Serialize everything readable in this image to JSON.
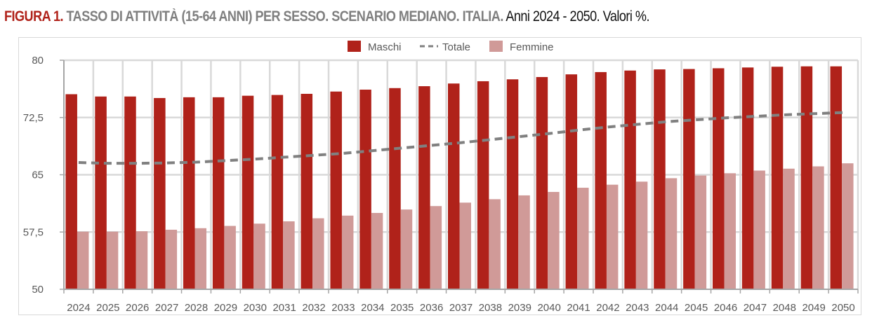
{
  "title": {
    "figure": "FIGURA 1.",
    "main": " TASSO DI ATTIVITÀ (15-64 ANNI) PER SESSO. SCENARIO MEDIANO. ITALIA.",
    "sub": " Anni 2024 - 2050. Valori %."
  },
  "colors": {
    "maschi": "#B0221A",
    "femmine": "#D09A98",
    "totale": "#808080",
    "grid": "#d9d9d9",
    "axis": "#a6a6a6"
  },
  "chart_data": {
    "type": "bar",
    "title": "TASSO DI ATTIVITÀ (15-64 ANNI) PER SESSO. SCENARIO MEDIANO. ITALIA.",
    "xlabel": "",
    "ylabel": "",
    "ylim": [
      50,
      80
    ],
    "yticks": [
      50,
      57.5,
      65,
      72.5,
      80
    ],
    "ytick_labels": [
      "50",
      "57,5",
      "65",
      "72,5",
      "80"
    ],
    "grid": true,
    "legend_position": "top-center",
    "categories": [
      "2024",
      "2025",
      "2026",
      "2027",
      "2028",
      "2029",
      "2030",
      "2031",
      "2032",
      "2033",
      "2034",
      "2035",
      "2036",
      "2037",
      "2038",
      "2039",
      "2040",
      "2041",
      "2042",
      "2043",
      "2044",
      "2045",
      "2046",
      "2047",
      "2048",
      "2049",
      "2050"
    ],
    "series": [
      {
        "name": "Maschi",
        "kind": "bar",
        "values": [
          75.55,
          75.25,
          75.25,
          75.05,
          75.15,
          75.15,
          75.35,
          75.45,
          75.6,
          75.9,
          76.15,
          76.35,
          76.6,
          76.95,
          77.25,
          77.5,
          77.8,
          78.15,
          78.45,
          78.65,
          78.8,
          78.85,
          78.95,
          79.05,
          79.15,
          79.2,
          79.2
        ]
      },
      {
        "name": "Totale",
        "kind": "line-dashed",
        "values": [
          66.6,
          66.5,
          66.5,
          66.55,
          66.65,
          66.85,
          67.05,
          67.3,
          67.55,
          67.8,
          68.15,
          68.5,
          68.85,
          69.2,
          69.6,
          70.0,
          70.4,
          70.85,
          71.25,
          71.6,
          71.95,
          72.2,
          72.45,
          72.65,
          72.85,
          73.0,
          73.15
        ]
      },
      {
        "name": "Femmine",
        "kind": "bar",
        "values": [
          57.55,
          57.55,
          57.6,
          57.8,
          58.0,
          58.3,
          58.6,
          58.9,
          59.3,
          59.65,
          60.0,
          60.45,
          60.9,
          61.35,
          61.8,
          62.3,
          62.75,
          63.3,
          63.7,
          64.1,
          64.55,
          64.9,
          65.2,
          65.55,
          65.8,
          66.1,
          66.5
        ]
      }
    ]
  }
}
